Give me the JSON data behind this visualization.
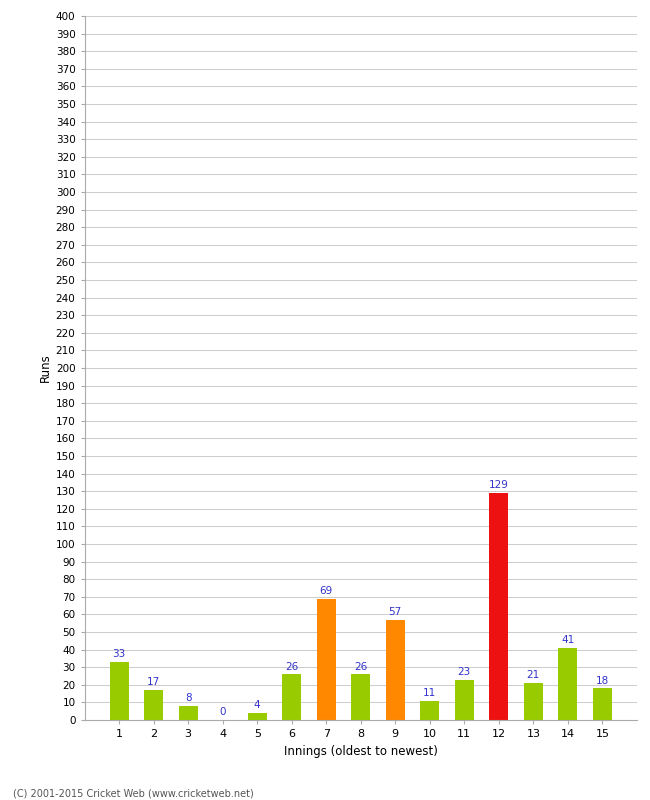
{
  "xlabel": "Innings (oldest to newest)",
  "ylabel": "Runs",
  "categories": [
    1,
    2,
    3,
    4,
    5,
    6,
    7,
    8,
    9,
    10,
    11,
    12,
    13,
    14,
    15
  ],
  "values": [
    33,
    17,
    8,
    0,
    4,
    26,
    69,
    26,
    57,
    11,
    23,
    129,
    21,
    41,
    18
  ],
  "bar_colors": [
    "#99cc00",
    "#99cc00",
    "#99cc00",
    "#99cc00",
    "#99cc00",
    "#99cc00",
    "#ff8800",
    "#99cc00",
    "#ff8800",
    "#99cc00",
    "#99cc00",
    "#ee1111",
    "#99cc00",
    "#99cc00",
    "#99cc00"
  ],
  "ylim": [
    0,
    400
  ],
  "ytick_step": 10,
  "ytick_label_step": 10,
  "label_color": "#3333cc",
  "background_color": "#ffffff",
  "grid_color": "#cccccc",
  "footer": "(C) 2001-2015 Cricket Web (www.cricketweb.net)",
  "bar_width": 0.55
}
